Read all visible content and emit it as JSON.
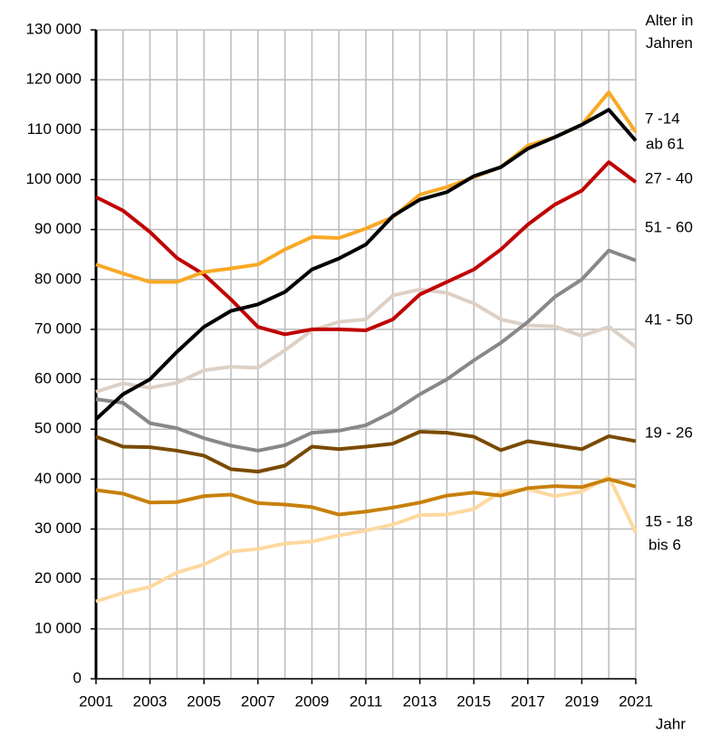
{
  "chart_data": {
    "type": "line",
    "x_label": "Jahr",
    "legend_title": "Alter in Jahren",
    "x": [
      2001,
      2002,
      2003,
      2004,
      2005,
      2006,
      2007,
      2008,
      2009,
      2010,
      2011,
      2012,
      2013,
      2014,
      2015,
      2016,
      2017,
      2018,
      2019,
      2020,
      2021
    ],
    "xlim": [
      2001,
      2021
    ],
    "xticks": [
      2001,
      2003,
      2005,
      2007,
      2009,
      2011,
      2013,
      2015,
      2017,
      2019,
      2021
    ],
    "ylim": [
      0,
      130000
    ],
    "yticks": [
      0,
      {
        "value": 10000,
        "label": "10 000"
      },
      {
        "value": 20000,
        "label": "20 000"
      },
      {
        "value": 30000,
        "label": "30 000"
      },
      {
        "value": 40000,
        "label": "40 000"
      },
      {
        "value": 50000,
        "label": "50 000"
      },
      {
        "value": 60000,
        "label": "60 000"
      },
      {
        "value": 70000,
        "label": "70 000"
      },
      {
        "value": 80000,
        "label": "80 000"
      },
      {
        "value": 90000,
        "label": "90 000"
      },
      {
        "value": 100000,
        "label": "100 000"
      },
      {
        "value": 110000,
        "label": "110 000"
      },
      {
        "value": 120000,
        "label": "120 000"
      },
      {
        "value": 130000,
        "label": "130 000"
      }
    ],
    "grid": true,
    "series": [
      {
        "name": "bis 6",
        "color": "#fdd9a0",
        "values": [
          15500,
          17200,
          18400,
          21300,
          22900,
          25500,
          26000,
          27100,
          27500,
          28700,
          29700,
          30900,
          32800,
          32900,
          34000,
          37500,
          38000,
          36600,
          37500,
          40500,
          29300
        ]
      },
      {
        "name": "15 - 18",
        "color": "#c8800a",
        "values": [
          37800,
          37100,
          35300,
          35400,
          36600,
          36900,
          35200,
          34900,
          34400,
          32900,
          33500,
          34300,
          35300,
          36700,
          37300,
          36700,
          38200,
          38600,
          38400,
          40000,
          38500
        ]
      },
      {
        "name": "19 - 26",
        "color": "#7a4a00",
        "values": [
          48500,
          46500,
          46400,
          45700,
          44700,
          42000,
          41500,
          42700,
          46500,
          46000,
          46500,
          47100,
          49500,
          49300,
          48500,
          45800,
          47600,
          46800,
          46000,
          48600,
          47600
        ]
      },
      {
        "name": "41 - 50",
        "color": "#ddd0c5",
        "values": [
          57500,
          59200,
          58300,
          59300,
          61800,
          62500,
          62300,
          65800,
          69800,
          71500,
          72000,
          76800,
          78000,
          77300,
          75200,
          72000,
          70800,
          70600,
          68700,
          70500,
          66500
        ]
      },
      {
        "name": "51 - 60",
        "color": "#888888",
        "values": [
          56000,
          55300,
          51200,
          50200,
          48200,
          46700,
          45700,
          46800,
          49300,
          49700,
          50800,
          53500,
          57000,
          60000,
          63800,
          67300,
          71500,
          76500,
          80000,
          85800,
          83800
        ]
      },
      {
        "name": "27 - 40",
        "color": "#c00000",
        "values": [
          96500,
          93800,
          89500,
          84300,
          81000,
          76000,
          70500,
          69000,
          70000,
          70000,
          69800,
          72000,
          77000,
          79500,
          82000,
          86000,
          91000,
          95000,
          97800,
          103500,
          99500
        ]
      },
      {
        "name": "7 -14",
        "color": "#f9a825",
        "values": [
          83000,
          81200,
          79500,
          79500,
          81500,
          82200,
          83000,
          86000,
          88500,
          88300,
          90200,
          92500,
          97000,
          98500,
          100500,
          102500,
          106800,
          108500,
          111000,
          117500,
          109500
        ]
      },
      {
        "name": "ab 61",
        "color": "#000000",
        "values": [
          52000,
          57000,
          60000,
          65500,
          70500,
          73700,
          75000,
          77500,
          82000,
          84200,
          87000,
          92700,
          96000,
          97500,
          100700,
          102500,
          106200,
          108500,
          111000,
          114000,
          107800
        ]
      }
    ]
  }
}
